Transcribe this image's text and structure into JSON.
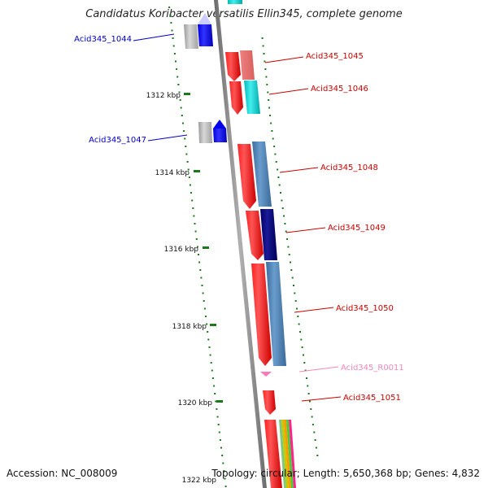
{
  "title": "Candidatus Koribacter versatilis Ellin345, complete genome",
  "footer": {
    "accession": "Accession: NC_008009",
    "summary": "Topology: circular; Length: 5,650,368 bp; Genes: 4,832"
  },
  "colors": {
    "backbone": "#8a8a8a",
    "tick": "#1a7a1a",
    "forward_label": "#0000cc",
    "reverse_label": "#cc0000",
    "rna_label": "#ee88bb"
  },
  "ticks": [
    "1312 kbp",
    "1314 kbp",
    "1316 kbp",
    "1318 kbp",
    "1320 kbp",
    "1322 kbp"
  ],
  "genes": [
    {
      "id": "Acid345_1044",
      "strand": "+"
    },
    {
      "id": "Acid345_1045",
      "strand": "-"
    },
    {
      "id": "Acid345_1046",
      "strand": "-"
    },
    {
      "id": "Acid345_1047",
      "strand": "+"
    },
    {
      "id": "Acid345_1048",
      "strand": "-"
    },
    {
      "id": "Acid345_1049",
      "strand": "-"
    },
    {
      "id": "Acid345_1050",
      "strand": "-"
    },
    {
      "id": "Acid345_R0011",
      "strand": "-",
      "type": "RNA"
    },
    {
      "id": "Acid345_1051",
      "strand": "-"
    }
  ]
}
